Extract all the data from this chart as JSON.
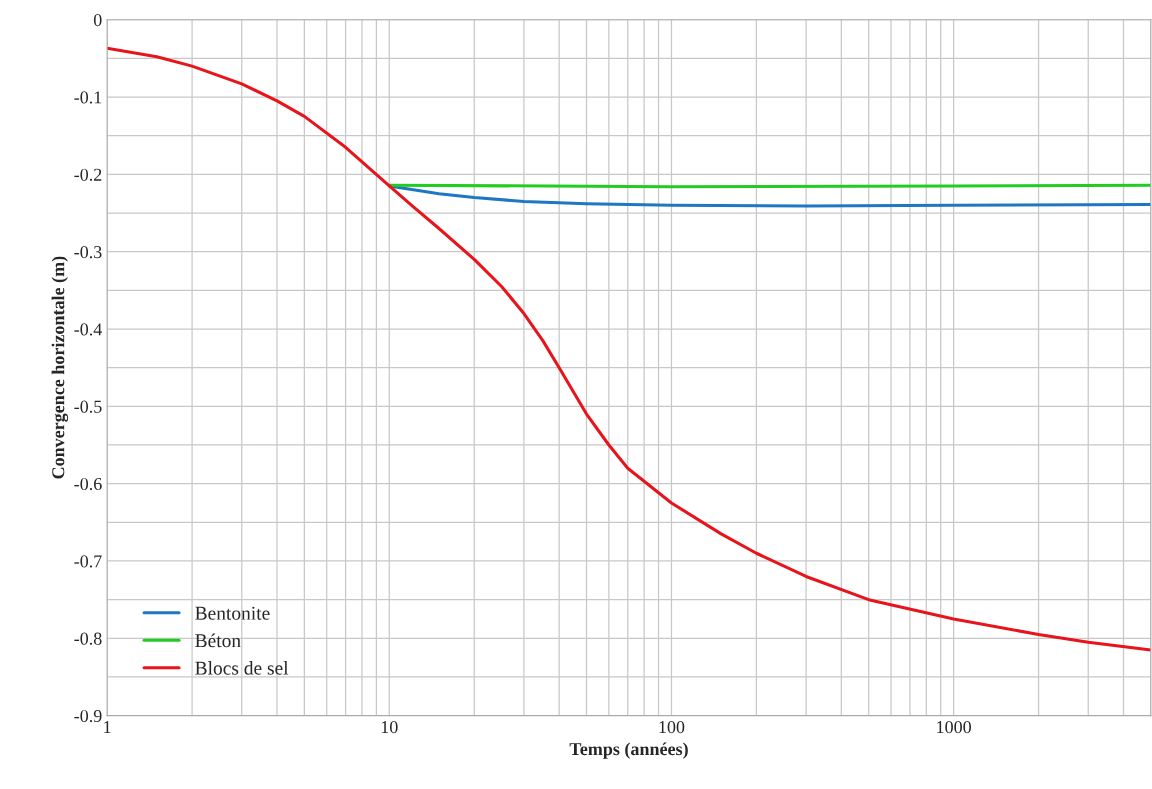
{
  "chart_data": {
    "type": "line",
    "xlabel": "Temps (années)",
    "ylabel": "Convergence horizontale (m)",
    "log": "x",
    "xlim": [
      1,
      5000
    ],
    "xticks": [
      1,
      10,
      100,
      1000
    ],
    "ylim": [
      -0.9,
      0
    ],
    "yticks": [
      -0.9,
      -0.8,
      -0.7,
      -0.6,
      -0.5,
      -0.4,
      -0.3,
      -0.2,
      -0.1,
      0
    ],
    "grid": true,
    "legend": "bottom left",
    "marker": "none",
    "line_style": "solid",
    "series": [
      {
        "name": "Bentonite",
        "color": "#1f77c4",
        "x": [
          10,
          15,
          20,
          30,
          50,
          100,
          300,
          1000,
          5000
        ],
        "values": [
          -0.215,
          -0.225,
          -0.23,
          -0.235,
          -0.238,
          -0.24,
          -0.241,
          -0.24,
          -0.239
        ]
      },
      {
        "name": "Béton",
        "color": "#22cc22",
        "x": [
          10,
          100,
          1000,
          5000
        ],
        "values": [
          -0.214,
          -0.216,
          -0.215,
          -0.214
        ]
      },
      {
        "name": "Blocs de sel",
        "color": "#e8141b",
        "x": [
          1,
          1.5,
          2,
          3,
          4,
          5,
          7,
          10,
          12,
          15,
          20,
          25,
          30,
          35,
          40,
          50,
          60,
          70,
          100,
          150,
          200,
          300,
          500,
          1000,
          2000,
          3000,
          5000
        ],
        "values": [
          -0.037,
          -0.048,
          -0.06,
          -0.083,
          -0.105,
          -0.125,
          -0.165,
          -0.215,
          -0.24,
          -0.27,
          -0.31,
          -0.345,
          -0.38,
          -0.415,
          -0.45,
          -0.51,
          -0.55,
          -0.58,
          -0.625,
          -0.665,
          -0.69,
          -0.72,
          -0.75,
          -0.775,
          -0.795,
          -0.805,
          -0.815
        ]
      }
    ]
  }
}
